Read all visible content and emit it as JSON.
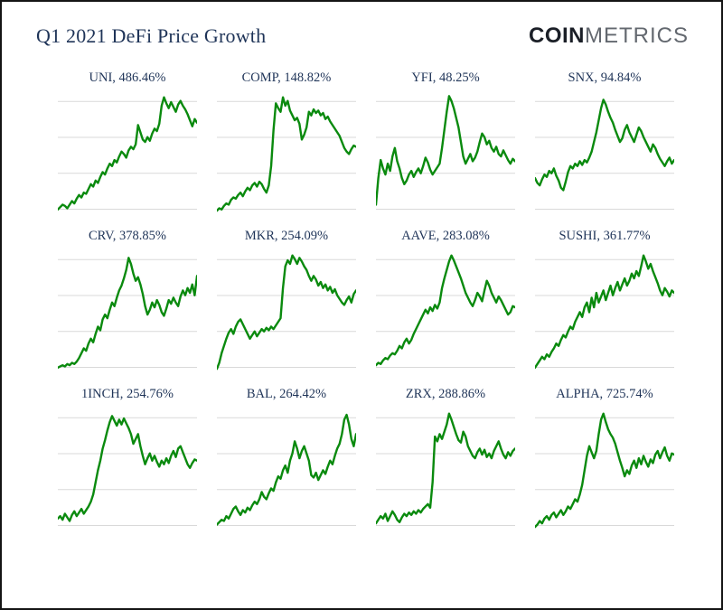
{
  "window": {
    "background_color": "#ffffff",
    "border_color": "#141414"
  },
  "header": {
    "title": "Q1 2021 DeFi Price Growth",
    "title_color": "#1f3458",
    "logo": {
      "bold_part": "COIN",
      "light_part": "METRICS",
      "bold_color": "#1b1f27",
      "light_color": "#63686f"
    }
  },
  "chart_data": {
    "type": "line",
    "title": "Q1 2021 DeFi Price Growth",
    "layout": {
      "rows": 3,
      "cols": 4,
      "legend": "none",
      "grid": "horizontal gridlines only, no axis ticks or labels",
      "gridline_color": "#d9d9d9",
      "gridline_fracs": [
        10,
        38,
        66,
        94
      ],
      "line_color": "#0a8a0e",
      "line_width": 2.4,
      "x": "daily samples across Q1 2021 (no visible x-axis)",
      "y_normalization": "each panel min-max normalized to 0-100 of plot height (no visible y-axis)"
    },
    "panels": [
      {
        "symbol": "UNI",
        "q1_growth_pct": 486.46,
        "label": "UNI, 486.46%",
        "values": [
          4,
          6,
          8,
          7,
          5,
          8,
          11,
          9,
          13,
          16,
          14,
          18,
          17,
          21,
          25,
          23,
          28,
          26,
          31,
          35,
          33,
          38,
          42,
          40,
          45,
          43,
          48,
          52,
          50,
          47,
          53,
          56,
          54,
          58,
          74,
          68,
          62,
          60,
          64,
          61,
          67,
          71,
          69,
          75,
          90,
          97,
          92,
          88,
          93,
          89,
          85,
          91,
          94,
          90,
          87,
          83,
          78,
          73,
          79,
          76
        ]
      },
      {
        "symbol": "COMP",
        "q1_growth_pct": 148.82,
        "label": "COMP, 148.82%",
        "values": [
          3,
          5,
          4,
          7,
          9,
          8,
          12,
          14,
          13,
          16,
          18,
          15,
          19,
          22,
          20,
          24,
          26,
          23,
          27,
          25,
          21,
          18,
          24,
          40,
          70,
          92,
          88,
          85,
          97,
          90,
          94,
          86,
          82,
          78,
          80,
          75,
          62,
          66,
          72,
          85,
          82,
          87,
          84,
          86,
          82,
          84,
          79,
          81,
          77,
          74,
          71,
          68,
          65,
          60,
          55,
          52,
          50,
          54,
          57,
          56
        ]
      },
      {
        "symbol": "YFI",
        "q1_growth_pct": 48.25,
        "label": "YFI, 48.25%",
        "values": [
          8,
          30,
          45,
          38,
          33,
          42,
          36,
          48,
          55,
          44,
          38,
          30,
          25,
          28,
          33,
          36,
          31,
          35,
          38,
          34,
          40,
          47,
          43,
          37,
          33,
          36,
          39,
          42,
          55,
          70,
          85,
          98,
          94,
          88,
          80,
          72,
          60,
          48,
          42,
          46,
          50,
          44,
          47,
          52,
          60,
          67,
          64,
          58,
          61,
          55,
          52,
          56,
          50,
          48,
          53,
          49,
          45,
          42,
          46,
          44
        ]
      },
      {
        "symbol": "SNX",
        "q1_growth_pct": 94.84,
        "label": "SNX, 94.84%",
        "values": [
          30,
          26,
          24,
          29,
          33,
          31,
          36,
          34,
          38,
          32,
          28,
          22,
          20,
          27,
          35,
          40,
          38,
          42,
          40,
          44,
          41,
          45,
          43,
          47,
          52,
          60,
          68,
          78,
          88,
          95,
          91,
          85,
          80,
          76,
          70,
          65,
          60,
          63,
          70,
          74,
          68,
          64,
          60,
          66,
          72,
          69,
          64,
          60,
          56,
          52,
          58,
          55,
          50,
          46,
          43,
          40,
          44,
          47,
          42,
          45
        ]
      },
      {
        "symbol": "CRV",
        "q1_growth_pct": 378.85,
        "label": "CRV, 378.85%",
        "values": [
          4,
          5,
          6,
          5,
          7,
          6,
          8,
          7,
          9,
          12,
          16,
          20,
          18,
          24,
          28,
          25,
          32,
          38,
          35,
          44,
          48,
          45,
          52,
          58,
          55,
          62,
          68,
          72,
          78,
          85,
          95,
          90,
          82,
          76,
          79,
          73,
          65,
          55,
          48,
          52,
          58,
          54,
          60,
          56,
          50,
          47,
          53,
          60,
          57,
          62,
          58,
          55,
          63,
          68,
          64,
          70,
          66,
          73,
          64,
          80
        ]
      },
      {
        "symbol": "MKR",
        "q1_growth_pct": 254.09,
        "label": "MKR, 254.09%",
        "values": [
          3,
          8,
          16,
          22,
          28,
          33,
          36,
          32,
          38,
          42,
          44,
          40,
          36,
          32,
          28,
          31,
          34,
          30,
          33,
          36,
          34,
          37,
          35,
          38,
          36,
          39,
          42,
          45,
          70,
          88,
          93,
          90,
          97,
          94,
          90,
          95,
          92,
          88,
          85,
          80,
          76,
          80,
          77,
          72,
          75,
          70,
          73,
          68,
          71,
          66,
          69,
          64,
          61,
          58,
          56,
          60,
          63,
          58,
          65,
          68
        ]
      },
      {
        "symbol": "AAVE",
        "q1_growth_pct": 283.08,
        "label": "AAVE, 283.08%",
        "values": [
          6,
          8,
          7,
          10,
          12,
          11,
          14,
          16,
          15,
          18,
          22,
          20,
          25,
          28,
          24,
          27,
          32,
          36,
          40,
          44,
          48,
          52,
          49,
          54,
          51,
          56,
          53,
          58,
          70,
          78,
          85,
          92,
          97,
          93,
          88,
          83,
          78,
          72,
          66,
          62,
          58,
          55,
          60,
          66,
          63,
          59,
          68,
          76,
          72,
          66,
          62,
          58,
          63,
          60,
          56,
          52,
          48,
          50,
          55,
          54
        ]
      },
      {
        "symbol": "SUSHI",
        "q1_growth_pct": 361.77,
        "label": "SUSHI, 361.77%",
        "values": [
          4,
          7,
          10,
          13,
          11,
          15,
          13,
          17,
          20,
          24,
          22,
          27,
          31,
          29,
          34,
          38,
          36,
          42,
          46,
          50,
          46,
          54,
          58,
          50,
          62,
          54,
          66,
          58,
          63,
          68,
          60,
          66,
          72,
          64,
          70,
          75,
          68,
          73,
          78,
          72,
          76,
          82,
          78,
          84,
          80,
          88,
          97,
          92,
          86,
          90,
          84,
          79,
          74,
          68,
          64,
          70,
          67,
          63,
          68,
          66
        ]
      },
      {
        "symbol": "1INCH",
        "q1_growth_pct": 254.76,
        "label": "1INCH, 254.76%",
        "values": [
          10,
          12,
          9,
          14,
          11,
          8,
          13,
          16,
          12,
          15,
          18,
          14,
          17,
          20,
          24,
          30,
          40,
          50,
          58,
          68,
          75,
          83,
          90,
          95,
          91,
          87,
          92,
          88,
          93,
          89,
          85,
          80,
          72,
          76,
          80,
          70,
          62,
          55,
          60,
          64,
          58,
          62,
          57,
          53,
          58,
          55,
          60,
          56,
          62,
          66,
          61,
          68,
          70,
          65,
          60,
          55,
          52,
          56,
          59,
          58
        ]
      },
      {
        "symbol": "BAL",
        "q1_growth_pct": 264.42,
        "label": "BAL, 264.42%",
        "values": [
          5,
          7,
          9,
          8,
          12,
          10,
          14,
          18,
          20,
          16,
          13,
          17,
          15,
          19,
          17,
          21,
          24,
          22,
          26,
          32,
          28,
          26,
          31,
          35,
          33,
          40,
          45,
          43,
          50,
          54,
          48,
          58,
          64,
          74,
          68,
          60,
          66,
          70,
          64,
          58,
          46,
          44,
          48,
          42,
          46,
          50,
          47,
          53,
          58,
          55,
          62,
          68,
          72,
          80,
          92,
          96,
          88,
          76,
          70,
          80
        ]
      },
      {
        "symbol": "ZRX",
        "q1_growth_pct": 288.86,
        "label": "ZRX, 288.86%",
        "values": [
          6,
          9,
          12,
          10,
          14,
          8,
          12,
          16,
          13,
          9,
          7,
          11,
          14,
          12,
          15,
          13,
          16,
          14,
          17,
          15,
          18,
          20,
          22,
          19,
          40,
          78,
          74,
          80,
          76,
          82,
          88,
          97,
          92,
          86,
          80,
          75,
          73,
          82,
          78,
          70,
          66,
          62,
          60,
          65,
          68,
          63,
          67,
          61,
          64,
          60,
          66,
          70,
          74,
          68,
          63,
          60,
          65,
          62,
          66,
          68
        ]
      },
      {
        "symbol": "ALPHA",
        "q1_growth_pct": 725.74,
        "label": "ALPHA, 725.74%",
        "values": [
          3,
          5,
          8,
          6,
          10,
          12,
          9,
          13,
          15,
          11,
          14,
          17,
          13,
          16,
          20,
          18,
          22,
          26,
          24,
          30,
          38,
          50,
          62,
          70,
          65,
          60,
          66,
          80,
          92,
          97,
          90,
          84,
          80,
          77,
          72,
          65,
          58,
          52,
          45,
          50,
          47,
          54,
          58,
          52,
          60,
          55,
          62,
          57,
          53,
          59,
          56,
          63,
          66,
          60,
          65,
          69,
          62,
          58,
          64,
          63
        ]
      }
    ]
  }
}
